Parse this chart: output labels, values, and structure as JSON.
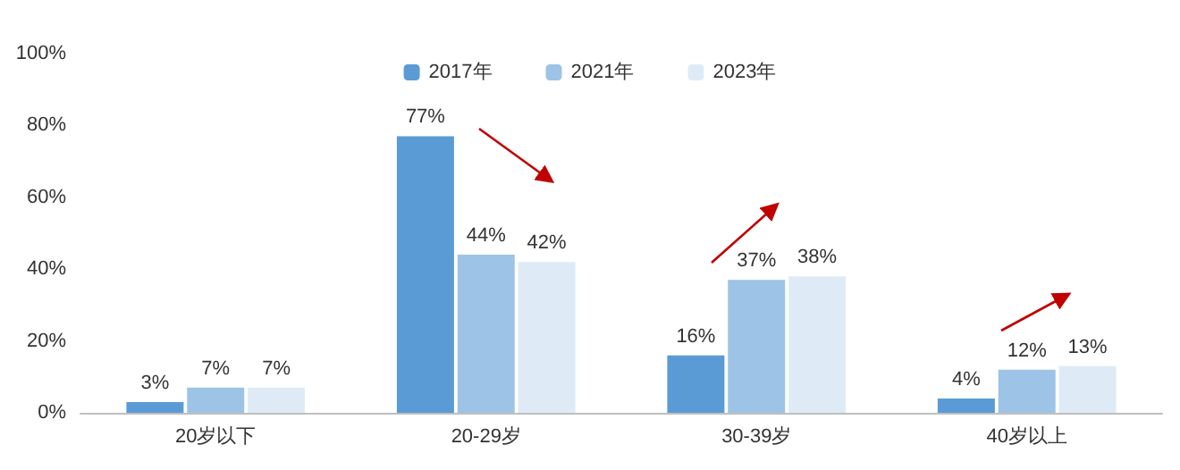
{
  "chart_data": {
    "type": "bar",
    "categories": [
      "20岁以下",
      "20-29岁",
      "30-39岁",
      "40岁以上"
    ],
    "series": [
      {
        "name": "2017年",
        "color": "#5b9bd5",
        "values": [
          3,
          77,
          16,
          4
        ],
        "value_labels": [
          "3%",
          "77%",
          "16%",
          "4%"
        ]
      },
      {
        "name": "2021年",
        "color": "#9dc3e6",
        "values": [
          7,
          44,
          37,
          12
        ],
        "value_labels": [
          "7%",
          "44%",
          "37%",
          "12%"
        ]
      },
      {
        "name": "2023年",
        "color": "#deebf7",
        "values": [
          7,
          42,
          38,
          13
        ],
        "value_labels": [
          "7%",
          "42%",
          "38%",
          "13%"
        ]
      }
    ],
    "ylim": [
      0,
      100
    ],
    "yticks": [
      {
        "value": 0,
        "label": "0%"
      },
      {
        "value": 20,
        "label": "20%"
      },
      {
        "value": 40,
        "label": "40%"
      },
      {
        "value": 60,
        "label": "60%"
      },
      {
        "value": 80,
        "label": "80%"
      },
      {
        "value": 100,
        "label": "100%"
      }
    ],
    "grid": false,
    "legend": "top"
  }
}
